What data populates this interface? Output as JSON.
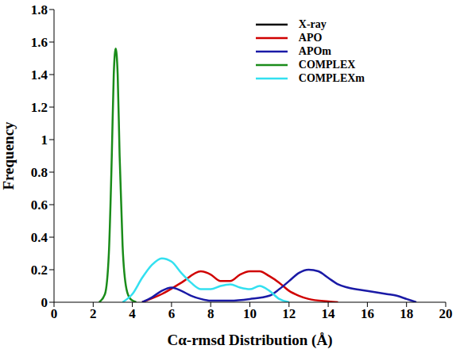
{
  "chart_data": {
    "type": "line",
    "x_label": "Cα-rmsd Distribution (Å)",
    "y_label": "Frequency",
    "xlim": [
      0,
      20
    ],
    "xticks": [
      0,
      2,
      4,
      6,
      8,
      10,
      12,
      14,
      16,
      18,
      20
    ],
    "ylim": [
      0,
      1.8
    ],
    "yticks": [
      0,
      0.2,
      0.4,
      0.6,
      0.8,
      1,
      1.2,
      1.4,
      1.6,
      1.8
    ],
    "grid": false,
    "legend": "upper right",
    "series": [
      {
        "name": "X-ray",
        "color": "#000000",
        "x": [],
        "values": []
      },
      {
        "name": "APO",
        "color": "#d00000",
        "x": [
          4.5,
          5.5,
          6.5,
          7.5,
          8,
          8.5,
          9,
          9.5,
          10,
          10.5,
          11,
          11.5,
          12,
          12.5,
          13,
          14,
          14.5
        ],
        "values": [
          0,
          0.05,
          0.12,
          0.19,
          0.17,
          0.13,
          0.13,
          0.17,
          0.19,
          0.19,
          0.16,
          0.12,
          0.07,
          0.04,
          0.02,
          0.005,
          0
        ]
      },
      {
        "name": "APOm",
        "color": "#1a1aa6",
        "x": [
          4.5,
          5,
          5.5,
          6,
          6.5,
          7,
          7.5,
          8,
          9,
          10,
          11,
          11.5,
          12,
          12.5,
          13,
          13.5,
          14,
          14.5,
          15,
          16,
          17,
          17.5,
          18,
          18.5
        ],
        "values": [
          0,
          0.03,
          0.07,
          0.09,
          0.07,
          0.04,
          0.02,
          0.01,
          0.01,
          0.02,
          0.04,
          0.08,
          0.13,
          0.18,
          0.2,
          0.19,
          0.15,
          0.11,
          0.09,
          0.07,
          0.05,
          0.04,
          0.02,
          0
        ]
      },
      {
        "name": "COMPLEX",
        "color": "#1a8c1a",
        "x": [
          2.3,
          2.6,
          2.8,
          2.95,
          3.05,
          3.15,
          3.25,
          3.35,
          3.5,
          3.7,
          3.9,
          4.2
        ],
        "values": [
          0,
          0.05,
          0.3,
          0.9,
          1.4,
          1.56,
          1.4,
          0.9,
          0.35,
          0.08,
          0.02,
          0
        ]
      },
      {
        "name": "COMPLEXm",
        "color": "#33e0f0",
        "x": [
          3.5,
          4,
          4.5,
          5,
          5.5,
          6,
          6.5,
          7,
          7.5,
          8,
          8.5,
          9,
          9.5,
          10,
          10.5,
          11,
          11.5,
          12
        ],
        "values": [
          0,
          0.05,
          0.15,
          0.23,
          0.27,
          0.25,
          0.18,
          0.12,
          0.08,
          0.08,
          0.1,
          0.11,
          0.09,
          0.08,
          0.1,
          0.07,
          0.02,
          0
        ]
      }
    ]
  }
}
